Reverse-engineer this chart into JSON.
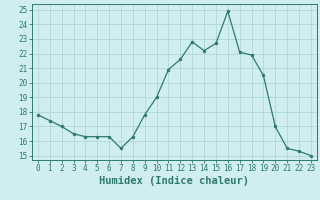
{
  "x": [
    0,
    1,
    2,
    3,
    4,
    5,
    6,
    7,
    8,
    9,
    10,
    11,
    12,
    13,
    14,
    15,
    16,
    17,
    18,
    19,
    20,
    21,
    22,
    23
  ],
  "y": [
    17.8,
    17.4,
    17.0,
    16.5,
    16.3,
    16.3,
    16.3,
    15.5,
    16.3,
    17.8,
    19.0,
    20.9,
    21.6,
    22.8,
    22.2,
    22.7,
    24.9,
    22.1,
    21.9,
    20.5,
    17.0,
    15.5,
    15.3,
    15.0
  ],
  "line_color": "#2d7b6b",
  "marker_color": "#2d7b6b",
  "bg_color": "#d0eeee",
  "grid_color": "#b0d8d8",
  "xlabel": "Humidex (Indice chaleur)",
  "ylabel_ticks": [
    15,
    16,
    17,
    18,
    19,
    20,
    21,
    22,
    23,
    24,
    25
  ],
  "ylim": [
    14.7,
    25.4
  ],
  "xlim": [
    -0.5,
    23.5
  ],
  "tick_fontsize": 5.5,
  "label_fontsize": 7.5
}
